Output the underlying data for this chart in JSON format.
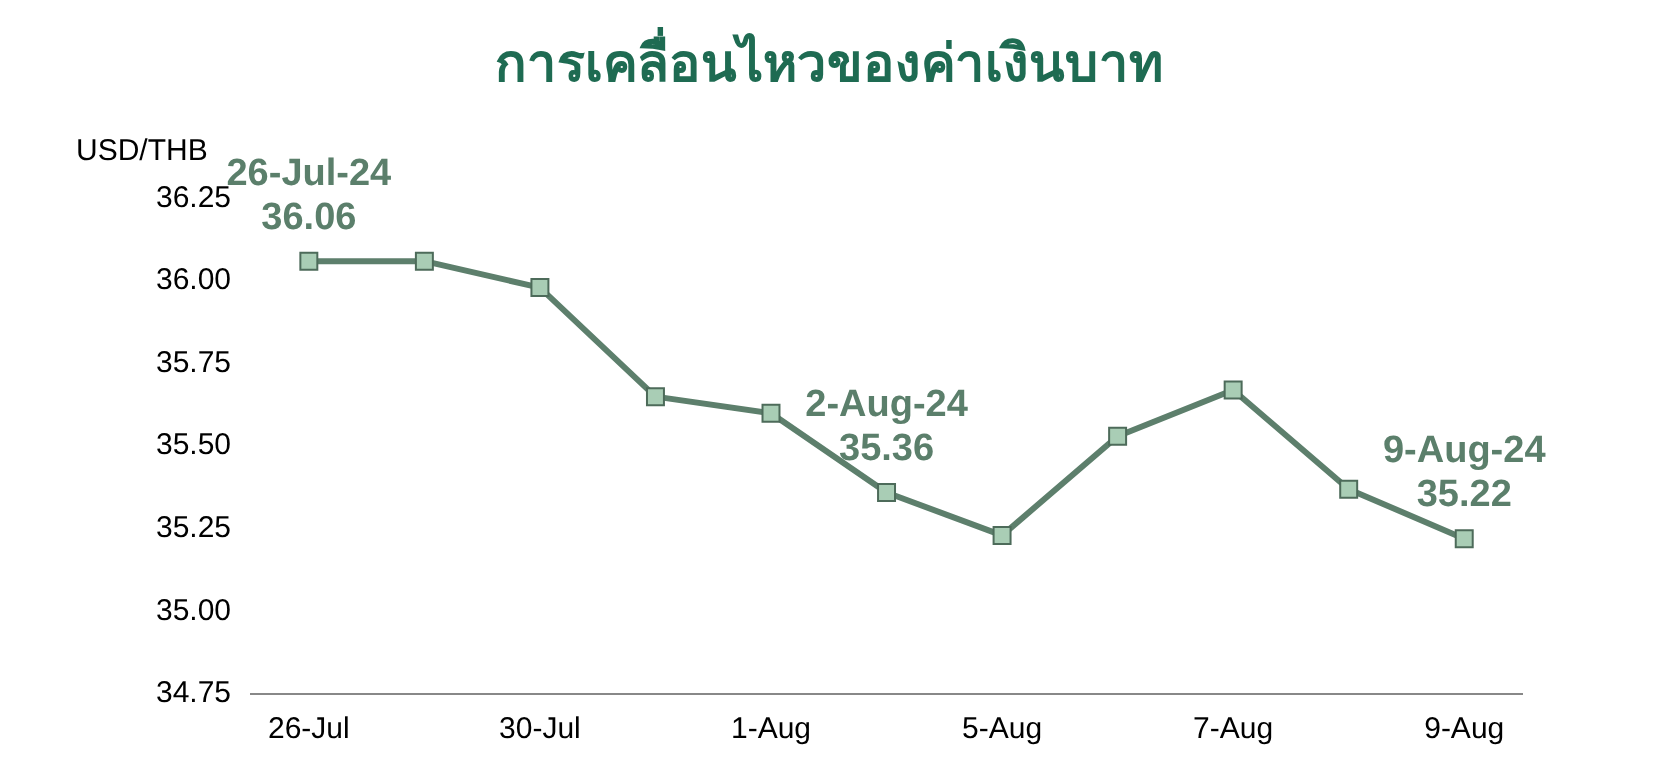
{
  "chart_data": {
    "type": "line",
    "title": "การเคลื่อนไหวของค่าเงินบาท",
    "ylabel": "USD/THB",
    "categories": [
      "26-Jul",
      null,
      "30-Jul",
      null,
      "1-Aug",
      null,
      "5-Aug",
      null,
      "7-Aug",
      null,
      "9-Aug"
    ],
    "series": [
      {
        "color": "#5d7f6c",
        "values": [
          36.06,
          36.06,
          35.98,
          35.65,
          35.6,
          35.36,
          35.23,
          35.53,
          35.67,
          35.37,
          35.22
        ]
      }
    ],
    "ylim": [
      34.75,
      36.25
    ],
    "yticks": [
      34.75,
      {
        "value": 35,
        "label": "35.00"
      },
      35.25,
      {
        "value": 35.5,
        "label": "35.50"
      },
      35.75,
      {
        "value": 36,
        "label": "36.00"
      },
      36.25
    ],
    "marker": "square",
    "grid": false,
    "legend": false,
    "annotations": [
      {
        "text": "26-Jul-24\n36.06",
        "x": "26-Jul",
        "y": 36.06
      },
      {
        "text": "2-Aug-24\n35.36",
        "y": 35.36
      },
      {
        "text": "9-Aug-24\n35.22",
        "x": "9-Aug",
        "y": 35.22
      }
    ]
  }
}
